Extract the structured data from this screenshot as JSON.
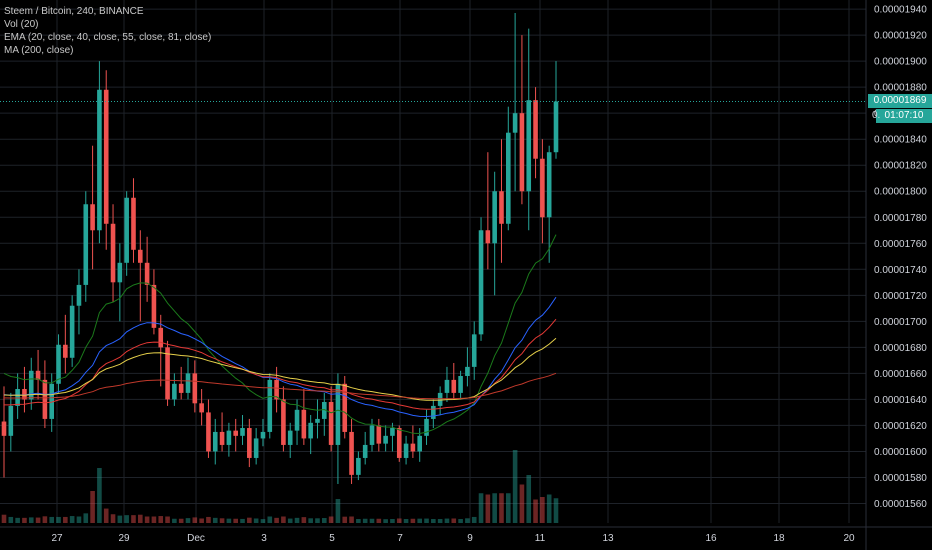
{
  "legend": {
    "symbol": "Steem / Bitcoin, 240, BINANCE",
    "vol": "Vol (20)",
    "ema": "EMA (20, close, 40, close, 55, close, 81, close)",
    "ma": "MA (200, close)"
  },
  "price_tag": "0.00001869",
  "timer_tag": "01:07:10",
  "price_tag_partial": "0.",
  "colors": {
    "background": "#000000",
    "up": "#26a69a",
    "down": "#ef5350",
    "ema20": "#1b7a1b",
    "ema40": "#2962ff",
    "ema55": "#e53935",
    "ema81": "#e6d04a",
    "ma200": "#c0392b"
  },
  "chart_data": {
    "type": "candlestick",
    "title": "Steem / Bitcoin, 240, BINANCE",
    "ylim": [
      1.545e-05,
      1.947e-05
    ],
    "y_ticks": [
      "0.00001940",
      "0.00001920",
      "0.00001900",
      "0.00001880",
      "0.00001860",
      "0.00001840",
      "0.00001820",
      "0.00001800",
      "0.00001780",
      "0.00001760",
      "0.00001740",
      "0.00001720",
      "0.00001700",
      "0.00001680",
      "0.00001660",
      "0.00001640",
      "0.00001620",
      "0.00001600",
      "0.00001580",
      "0.00001560"
    ],
    "x_ticks": [
      "27",
      "29",
      "Dec",
      "3",
      "5",
      "7",
      "9",
      "11",
      "13",
      "16",
      "18",
      "20"
    ],
    "last_price": 1.869e-05,
    "candles": [
      {
        "o": 1623,
        "h": 1650,
        "l": 1580,
        "c": 1612
      },
      {
        "o": 1612,
        "h": 1645,
        "l": 1600,
        "c": 1635
      },
      {
        "o": 1635,
        "h": 1660,
        "l": 1625,
        "c": 1648
      },
      {
        "o": 1648,
        "h": 1665,
        "l": 1630,
        "c": 1640
      },
      {
        "o": 1640,
        "h": 1672,
        "l": 1632,
        "c": 1662
      },
      {
        "o": 1662,
        "h": 1678,
        "l": 1640,
        "c": 1655
      },
      {
        "o": 1655,
        "h": 1670,
        "l": 1618,
        "c": 1625
      },
      {
        "o": 1625,
        "h": 1660,
        "l": 1615,
        "c": 1652
      },
      {
        "o": 1652,
        "h": 1690,
        "l": 1645,
        "c": 1682
      },
      {
        "o": 1682,
        "h": 1705,
        "l": 1660,
        "c": 1672
      },
      {
        "o": 1672,
        "h": 1720,
        "l": 1665,
        "c": 1712
      },
      {
        "o": 1712,
        "h": 1740,
        "l": 1690,
        "c": 1728
      },
      {
        "o": 1728,
        "h": 1800,
        "l": 1715,
        "c": 1790
      },
      {
        "o": 1790,
        "h": 1835,
        "l": 1740,
        "c": 1770
      },
      {
        "o": 1770,
        "h": 1900,
        "l": 1760,
        "c": 1878
      },
      {
        "o": 1878,
        "h": 1893,
        "l": 1755,
        "c": 1775
      },
      {
        "o": 1775,
        "h": 1790,
        "l": 1715,
        "c": 1730
      },
      {
        "o": 1730,
        "h": 1760,
        "l": 1700,
        "c": 1745
      },
      {
        "o": 1745,
        "h": 1800,
        "l": 1735,
        "c": 1795
      },
      {
        "o": 1795,
        "h": 1810,
        "l": 1745,
        "c": 1755
      },
      {
        "o": 1755,
        "h": 1770,
        "l": 1700,
        "c": 1745
      },
      {
        "o": 1745,
        "h": 1765,
        "l": 1715,
        "c": 1728
      },
      {
        "o": 1728,
        "h": 1740,
        "l": 1690,
        "c": 1695
      },
      {
        "o": 1695,
        "h": 1705,
        "l": 1650,
        "c": 1680
      },
      {
        "o": 1680,
        "h": 1685,
        "l": 1635,
        "c": 1640
      },
      {
        "o": 1640,
        "h": 1660,
        "l": 1635,
        "c": 1652
      },
      {
        "o": 1652,
        "h": 1665,
        "l": 1640,
        "c": 1645
      },
      {
        "o": 1645,
        "h": 1672,
        "l": 1640,
        "c": 1660
      },
      {
        "o": 1660,
        "h": 1670,
        "l": 1630,
        "c": 1637
      },
      {
        "o": 1637,
        "h": 1648,
        "l": 1620,
        "c": 1630
      },
      {
        "o": 1630,
        "h": 1640,
        "l": 1595,
        "c": 1600
      },
      {
        "o": 1600,
        "h": 1625,
        "l": 1590,
        "c": 1615
      },
      {
        "o": 1615,
        "h": 1630,
        "l": 1600,
        "c": 1605
      },
      {
        "o": 1605,
        "h": 1622,
        "l": 1596,
        "c": 1616
      },
      {
        "o": 1616,
        "h": 1625,
        "l": 1600,
        "c": 1612
      },
      {
        "o": 1612,
        "h": 1628,
        "l": 1605,
        "c": 1618
      },
      {
        "o": 1618,
        "h": 1625,
        "l": 1588,
        "c": 1595
      },
      {
        "o": 1595,
        "h": 1618,
        "l": 1590,
        "c": 1610
      },
      {
        "o": 1610,
        "h": 1625,
        "l": 1604,
        "c": 1615
      },
      {
        "o": 1615,
        "h": 1660,
        "l": 1610,
        "c": 1655
      },
      {
        "o": 1655,
        "h": 1665,
        "l": 1630,
        "c": 1640
      },
      {
        "o": 1640,
        "h": 1650,
        "l": 1600,
        "c": 1605
      },
      {
        "o": 1605,
        "h": 1622,
        "l": 1595,
        "c": 1616
      },
      {
        "o": 1616,
        "h": 1640,
        "l": 1605,
        "c": 1632
      },
      {
        "o": 1632,
        "h": 1648,
        "l": 1605,
        "c": 1610
      },
      {
        "o": 1610,
        "h": 1628,
        "l": 1598,
        "c": 1622
      },
      {
        "o": 1622,
        "h": 1640,
        "l": 1610,
        "c": 1625
      },
      {
        "o": 1625,
        "h": 1645,
        "l": 1612,
        "c": 1638
      },
      {
        "o": 1638,
        "h": 1650,
        "l": 1600,
        "c": 1605
      },
      {
        "o": 1605,
        "h": 1660,
        "l": 1575,
        "c": 1652
      },
      {
        "o": 1652,
        "h": 1658,
        "l": 1610,
        "c": 1615
      },
      {
        "o": 1615,
        "h": 1625,
        "l": 1575,
        "c": 1582
      },
      {
        "o": 1582,
        "h": 1600,
        "l": 1578,
        "c": 1595
      },
      {
        "o": 1595,
        "h": 1615,
        "l": 1590,
        "c": 1605
      },
      {
        "o": 1605,
        "h": 1625,
        "l": 1600,
        "c": 1620
      },
      {
        "o": 1620,
        "h": 1625,
        "l": 1600,
        "c": 1606
      },
      {
        "o": 1606,
        "h": 1620,
        "l": 1600,
        "c": 1612
      },
      {
        "o": 1612,
        "h": 1622,
        "l": 1600,
        "c": 1618
      },
      {
        "o": 1618,
        "h": 1620,
        "l": 1592,
        "c": 1595
      },
      {
        "o": 1595,
        "h": 1612,
        "l": 1590,
        "c": 1606
      },
      {
        "o": 1606,
        "h": 1620,
        "l": 1595,
        "c": 1600
      },
      {
        "o": 1600,
        "h": 1618,
        "l": 1592,
        "c": 1612
      },
      {
        "o": 1612,
        "h": 1632,
        "l": 1605,
        "c": 1625
      },
      {
        "o": 1625,
        "h": 1640,
        "l": 1618,
        "c": 1635
      },
      {
        "o": 1635,
        "h": 1650,
        "l": 1628,
        "c": 1645
      },
      {
        "o": 1645,
        "h": 1665,
        "l": 1638,
        "c": 1655
      },
      {
        "o": 1655,
        "h": 1668,
        "l": 1640,
        "c": 1645
      },
      {
        "o": 1645,
        "h": 1662,
        "l": 1640,
        "c": 1658
      },
      {
        "o": 1658,
        "h": 1680,
        "l": 1650,
        "c": 1665
      },
      {
        "o": 1665,
        "h": 1700,
        "l": 1655,
        "c": 1690
      },
      {
        "o": 1690,
        "h": 1780,
        "l": 1685,
        "c": 1770
      },
      {
        "o": 1770,
        "h": 1830,
        "l": 1740,
        "c": 1760
      },
      {
        "o": 1760,
        "h": 1815,
        "l": 1720,
        "c": 1800
      },
      {
        "o": 1800,
        "h": 1840,
        "l": 1745,
        "c": 1775
      },
      {
        "o": 1775,
        "h": 1865,
        "l": 1770,
        "c": 1845
      },
      {
        "o": 1845,
        "h": 1937,
        "l": 1800,
        "c": 1860
      },
      {
        "o": 1860,
        "h": 1920,
        "l": 1790,
        "c": 1800
      },
      {
        "o": 1800,
        "h": 1925,
        "l": 1770,
        "c": 1870
      },
      {
        "o": 1870,
        "h": 1880,
        "l": 1810,
        "c": 1825
      },
      {
        "o": 1825,
        "h": 1840,
        "l": 1760,
        "c": 1780
      },
      {
        "o": 1780,
        "h": 1835,
        "l": 1745,
        "c": 1830
      },
      {
        "o": 1830,
        "h": 1900,
        "l": 1825,
        "c": 1869
      }
    ]
  }
}
